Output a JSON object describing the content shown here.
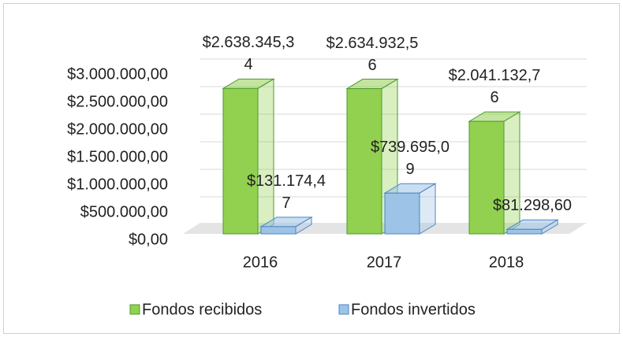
{
  "chart_data": {
    "type": "bar3d",
    "categories": [
      "2016",
      "2017",
      "2018"
    ],
    "series": [
      {
        "name": "Fondos recibidos",
        "color": "#92d050",
        "values": [
          2638345.34,
          2634932.56,
          2041132.76
        ],
        "value_labels": [
          "$2.638.345,34",
          "$2.634.932,56",
          "$2.041.132,76"
        ]
      },
      {
        "name": "Fondos invertidos",
        "color": "#9dc3e6",
        "values": [
          131174.47,
          739695.09,
          81298.6
        ],
        "value_labels": [
          "$131.174,47",
          "$739.695,09",
          "$81.298,60"
        ]
      }
    ],
    "ylim": [
      0,
      3000000
    ],
    "yticks": [
      {
        "value": 0,
        "label": "$0,00"
      },
      {
        "value": 500000,
        "label": "$500.000,00"
      },
      {
        "value": 1000000,
        "label": "$1.000.000,00"
      },
      {
        "value": 1500000,
        "label": "$1.500.000,00"
      },
      {
        "value": 2000000,
        "label": "$2.000.000,00"
      },
      {
        "value": 2500000,
        "label": "$2.500.000,00"
      },
      {
        "value": 3000000,
        "label": "$3.000.000,00"
      }
    ],
    "grid": true,
    "legend": "bottom"
  }
}
